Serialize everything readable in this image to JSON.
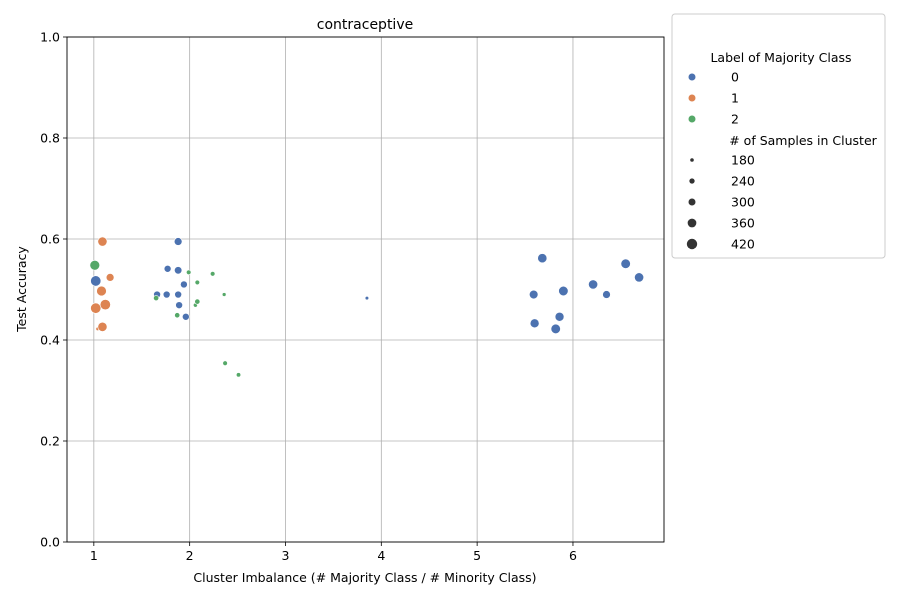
{
  "chart_data": {
    "type": "scatter",
    "title": "contraceptive",
    "xlabel": "Cluster Imbalance (# Majority Class / # Minority Class)",
    "ylabel": "Test Accuracy",
    "xlim": [
      0.72,
      6.95
    ],
    "ylim": [
      0,
      1.0
    ],
    "xticks": [
      "1",
      "2",
      "3",
      "4",
      "5",
      "6"
    ],
    "yticks": [
      "0.0",
      "0.2",
      "0.4",
      "0.6",
      "0.8",
      "1.0"
    ],
    "grid": true,
    "legend": {
      "placement": "outside-right",
      "hue_title": "Label of Majority Class",
      "hue_entries": [
        {
          "label": "0",
          "color": "#4c72b0"
        },
        {
          "label": "1",
          "color": "#dd8452"
        },
        {
          "label": "2",
          "color": "#55a868"
        }
      ],
      "size_title": "# of Samples in Cluster",
      "size_entries": [
        {
          "label": "180",
          "value": 180
        },
        {
          "label": "240",
          "value": 240
        },
        {
          "label": "300",
          "value": 300
        },
        {
          "label": "360",
          "value": 360
        },
        {
          "label": "420",
          "value": 420
        }
      ]
    },
    "series": [
      {
        "name": "0",
        "color": "#4c72b0",
        "points": [
          {
            "x": 1.02,
            "y": 0.517,
            "size": 420
          },
          {
            "x": 1.66,
            "y": 0.49,
            "size": 300
          },
          {
            "x": 1.76,
            "y": 0.49,
            "size": 300
          },
          {
            "x": 1.77,
            "y": 0.541,
            "size": 300
          },
          {
            "x": 1.88,
            "y": 0.595,
            "size": 330
          },
          {
            "x": 1.88,
            "y": 0.538,
            "size": 320
          },
          {
            "x": 1.88,
            "y": 0.49,
            "size": 300
          },
          {
            "x": 1.89,
            "y": 0.469,
            "size": 300
          },
          {
            "x": 1.94,
            "y": 0.51,
            "size": 300
          },
          {
            "x": 1.96,
            "y": 0.446,
            "size": 300
          },
          {
            "x": 3.85,
            "y": 0.483,
            "size": 180
          },
          {
            "x": 5.59,
            "y": 0.49,
            "size": 360
          },
          {
            "x": 5.6,
            "y": 0.433,
            "size": 370
          },
          {
            "x": 5.68,
            "y": 0.562,
            "size": 380
          },
          {
            "x": 5.82,
            "y": 0.422,
            "size": 390
          },
          {
            "x": 5.86,
            "y": 0.446,
            "size": 370
          },
          {
            "x": 5.9,
            "y": 0.497,
            "size": 390
          },
          {
            "x": 6.21,
            "y": 0.51,
            "size": 380
          },
          {
            "x": 6.35,
            "y": 0.49,
            "size": 330
          },
          {
            "x": 6.55,
            "y": 0.551,
            "size": 390
          },
          {
            "x": 6.69,
            "y": 0.524,
            "size": 380
          }
        ]
      },
      {
        "name": "1",
        "color": "#dd8452",
        "points": [
          {
            "x": 1.02,
            "y": 0.463,
            "size": 420
          },
          {
            "x": 1.04,
            "y": 0.422,
            "size": 180
          },
          {
            "x": 1.08,
            "y": 0.497,
            "size": 400
          },
          {
            "x": 1.09,
            "y": 0.595,
            "size": 380
          },
          {
            "x": 1.09,
            "y": 0.426,
            "size": 380
          },
          {
            "x": 1.12,
            "y": 0.47,
            "size": 420
          },
          {
            "x": 1.17,
            "y": 0.524,
            "size": 330
          }
        ]
      },
      {
        "name": "2",
        "color": "#55a868",
        "points": [
          {
            "x": 1.01,
            "y": 0.548,
            "size": 400
          },
          {
            "x": 1.65,
            "y": 0.483,
            "size": 240
          },
          {
            "x": 1.87,
            "y": 0.449,
            "size": 240
          },
          {
            "x": 1.99,
            "y": 0.534,
            "size": 220
          },
          {
            "x": 2.06,
            "y": 0.469,
            "size": 200
          },
          {
            "x": 2.08,
            "y": 0.476,
            "size": 240
          },
          {
            "x": 2.08,
            "y": 0.514,
            "size": 220
          },
          {
            "x": 2.24,
            "y": 0.531,
            "size": 220
          },
          {
            "x": 2.36,
            "y": 0.49,
            "size": 190
          },
          {
            "x": 2.37,
            "y": 0.354,
            "size": 220
          },
          {
            "x": 2.51,
            "y": 0.331,
            "size": 210
          }
        ]
      }
    ]
  }
}
